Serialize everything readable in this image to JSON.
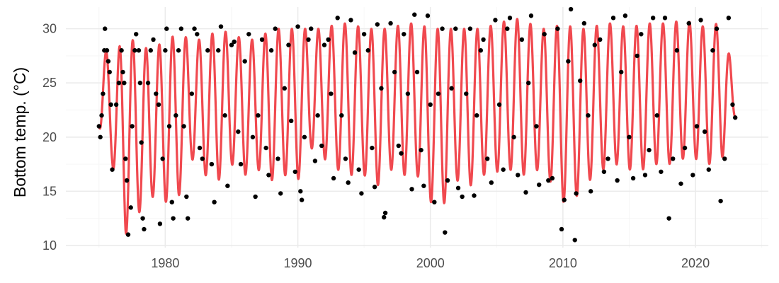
{
  "chart_data": {
    "type": "scatter",
    "title": "",
    "xlabel": "",
    "ylabel": "Bottom temp. (°C)",
    "xlim": [
      1972.5,
      2025.5
    ],
    "ylim": [
      9.8,
      32.0
    ],
    "x_ticks": [
      1980,
      1990,
      2000,
      2010,
      2020
    ],
    "y_ticks": [
      10,
      15,
      20,
      25,
      30
    ],
    "grid": true,
    "legend": "none",
    "colors": {
      "points": "#000000",
      "fit": "#f0494f",
      "grid": "#ebebeb"
    },
    "series": [
      {
        "kind": "points",
        "points": [
          [
            1975.0,
            21.0
          ],
          [
            1975.1,
            20.0
          ],
          [
            1975.2,
            22.0
          ],
          [
            1975.3,
            24.0
          ],
          [
            1975.4,
            28.0
          ],
          [
            1975.45,
            30.0
          ],
          [
            1975.6,
            28.0
          ],
          [
            1975.7,
            27.0
          ],
          [
            1975.8,
            26.0
          ],
          [
            1975.9,
            23.0
          ],
          [
            1976.0,
            17.0
          ],
          [
            1976.3,
            23.0
          ],
          [
            1976.5,
            25.0
          ],
          [
            1976.7,
            28.0
          ],
          [
            1976.8,
            26.0
          ],
          [
            1976.9,
            25.0
          ],
          [
            1977.0,
            18.0
          ],
          [
            1977.1,
            16.0
          ],
          [
            1977.2,
            11.0
          ],
          [
            1977.4,
            13.5
          ],
          [
            1977.5,
            21.0
          ],
          [
            1977.7,
            28.0
          ],
          [
            1977.8,
            29.5
          ],
          [
            1978.0,
            28.0
          ],
          [
            1978.1,
            25.0
          ],
          [
            1978.2,
            19.5
          ],
          [
            1978.3,
            12.5
          ],
          [
            1978.4,
            11.5
          ],
          [
            1978.7,
            25.0
          ],
          [
            1978.9,
            28.0
          ],
          [
            1979.1,
            29.0
          ],
          [
            1979.3,
            24.0
          ],
          [
            1979.5,
            23.0
          ],
          [
            1979.6,
            12.0
          ],
          [
            1979.8,
            18.0
          ],
          [
            1980.0,
            28.0
          ],
          [
            1980.1,
            30.0
          ],
          [
            1980.3,
            21.0
          ],
          [
            1980.5,
            14.0
          ],
          [
            1980.6,
            12.5
          ],
          [
            1980.8,
            22.0
          ],
          [
            1981.0,
            28.0
          ],
          [
            1981.2,
            30.0
          ],
          [
            1981.4,
            21.0
          ],
          [
            1981.6,
            14.5
          ],
          [
            1981.7,
            12.5
          ],
          [
            1982.0,
            24.0
          ],
          [
            1982.2,
            30.0
          ],
          [
            1982.4,
            29.5
          ],
          [
            1982.6,
            19.0
          ],
          [
            1982.8,
            18.0
          ],
          [
            1983.2,
            28.0
          ],
          [
            1983.5,
            17.5
          ],
          [
            1983.7,
            14.0
          ],
          [
            1984.0,
            28.0
          ],
          [
            1984.2,
            30.2
          ],
          [
            1984.5,
            22.0
          ],
          [
            1984.7,
            15.5
          ],
          [
            1985.0,
            28.5
          ],
          [
            1985.2,
            28.8
          ],
          [
            1985.5,
            20.5
          ],
          [
            1985.7,
            17.5
          ],
          [
            1986.0,
            27.0
          ],
          [
            1986.3,
            29.5
          ],
          [
            1986.6,
            20.0
          ],
          [
            1986.8,
            14.5
          ],
          [
            1987.0,
            22.0
          ],
          [
            1987.3,
            29.0
          ],
          [
            1987.6,
            19.0
          ],
          [
            1987.8,
            16.5
          ],
          [
            1988.0,
            28.0
          ],
          [
            1988.3,
            30.0
          ],
          [
            1988.5,
            18.0
          ],
          [
            1988.7,
            14.8
          ],
          [
            1989.0,
            24.5
          ],
          [
            1989.3,
            28.5
          ],
          [
            1989.5,
            21.5
          ],
          [
            1989.8,
            16.8
          ],
          [
            1990.0,
            30.2
          ],
          [
            1990.2,
            15.0
          ],
          [
            1990.3,
            14.2
          ],
          [
            1990.5,
            20.0
          ],
          [
            1990.8,
            29.0
          ],
          [
            1991.0,
            30.0
          ],
          [
            1991.3,
            17.8
          ],
          [
            1991.5,
            22.0
          ],
          [
            1991.8,
            19.2
          ],
          [
            1992.0,
            28.5
          ],
          [
            1992.3,
            29.0
          ],
          [
            1992.5,
            24.0
          ],
          [
            1992.7,
            16.2
          ],
          [
            1993.0,
            31.0
          ],
          [
            1993.3,
            22.0
          ],
          [
            1993.6,
            18.0
          ],
          [
            1993.8,
            15.8
          ],
          [
            1994.0,
            30.8
          ],
          [
            1994.3,
            27.8
          ],
          [
            1994.6,
            17.0
          ],
          [
            1994.8,
            14.8
          ],
          [
            1995.0,
            29.5
          ],
          [
            1995.3,
            28.0
          ],
          [
            1995.6,
            19.0
          ],
          [
            1995.8,
            15.4
          ],
          [
            1996.0,
            30.4
          ],
          [
            1996.3,
            24.5
          ],
          [
            1996.5,
            12.6
          ],
          [
            1996.6,
            13.0
          ],
          [
            1997.0,
            30.5
          ],
          [
            1997.3,
            26.0
          ],
          [
            1997.6,
            19.2
          ],
          [
            1997.8,
            18.5
          ],
          [
            1998.0,
            29.5
          ],
          [
            1998.3,
            24.0
          ],
          [
            1998.6,
            15.2
          ],
          [
            1998.8,
            31.3
          ],
          [
            1999.0,
            26.0
          ],
          [
            1999.3,
            18.8
          ],
          [
            1999.5,
            15.5
          ],
          [
            1999.8,
            31.2
          ],
          [
            2000.0,
            23.0
          ],
          [
            2000.3,
            14.0
          ],
          [
            2000.6,
            24.0
          ],
          [
            2000.9,
            30.0
          ],
          [
            2001.1,
            11.2
          ],
          [
            2001.3,
            16.0
          ],
          [
            2001.6,
            24.5
          ],
          [
            2001.9,
            30.0
          ],
          [
            2002.1,
            15.3
          ],
          [
            2002.4,
            14.5
          ],
          [
            2002.7,
            24.0
          ],
          [
            2003.0,
            30.0
          ],
          [
            2003.3,
            14.6
          ],
          [
            2003.5,
            22.0
          ],
          [
            2003.8,
            28.0
          ],
          [
            2004.0,
            29.0
          ],
          [
            2004.3,
            18.0
          ],
          [
            2004.6,
            15.8
          ],
          [
            2004.9,
            30.8
          ],
          [
            2005.2,
            23.0
          ],
          [
            2005.5,
            17.0
          ],
          [
            2005.8,
            30.0
          ],
          [
            2006.0,
            31.0
          ],
          [
            2006.3,
            20.0
          ],
          [
            2006.6,
            16.5
          ],
          [
            2006.9,
            29.0
          ],
          [
            2007.2,
            14.9
          ],
          [
            2007.4,
            25.0
          ],
          [
            2007.6,
            31.2
          ],
          [
            2008.0,
            21.0
          ],
          [
            2008.2,
            15.6
          ],
          [
            2008.6,
            29.5
          ],
          [
            2008.9,
            16.0
          ],
          [
            2009.2,
            16.2
          ],
          [
            2009.6,
            30.0
          ],
          [
            2009.9,
            11.5
          ],
          [
            2010.1,
            14.2
          ],
          [
            2010.4,
            27.0
          ],
          [
            2010.6,
            31.8
          ],
          [
            2010.9,
            10.5
          ],
          [
            2011.0,
            14.8
          ],
          [
            2011.3,
            25.2
          ],
          [
            2011.6,
            30.5
          ],
          [
            2011.9,
            22.0
          ],
          [
            2012.1,
            15.0
          ],
          [
            2012.4,
            28.5
          ],
          [
            2012.8,
            29.0
          ],
          [
            2013.1,
            16.8
          ],
          [
            2013.4,
            18.0
          ],
          [
            2013.8,
            31.0
          ],
          [
            2014.1,
            16.0
          ],
          [
            2014.4,
            26.0
          ],
          [
            2014.7,
            31.2
          ],
          [
            2015.0,
            20.0
          ],
          [
            2015.3,
            16.2
          ],
          [
            2015.6,
            27.5
          ],
          [
            2015.9,
            29.5
          ],
          [
            2016.2,
            16.5
          ],
          [
            2016.5,
            18.8
          ],
          [
            2016.8,
            31.0
          ],
          [
            2017.1,
            22.0
          ],
          [
            2017.4,
            16.8
          ],
          [
            2017.7,
            31.0
          ],
          [
            2018.0,
            12.5
          ],
          [
            2018.3,
            18.0
          ],
          [
            2018.6,
            28.0
          ],
          [
            2018.9,
            15.7
          ],
          [
            2019.2,
            19.0
          ],
          [
            2019.5,
            30.5
          ],
          [
            2019.8,
            16.5
          ],
          [
            2020.1,
            21.0
          ],
          [
            2020.4,
            30.8
          ],
          [
            2020.7,
            20.5
          ],
          [
            2021.0,
            17.0
          ],
          [
            2021.3,
            28.0
          ],
          [
            2021.6,
            30.0
          ],
          [
            2021.9,
            14.1
          ],
          [
            2022.2,
            18.0
          ],
          [
            2022.5,
            31.0
          ],
          [
            2022.8,
            23.0
          ],
          [
            2023.0,
            21.8
          ]
        ]
      },
      {
        "kind": "fitted-line",
        "x_start": 1975.0,
        "x_end": 2023.0,
        "seasonal_cycle_period_years": 1.0,
        "annual_cycles": [
          [
            1975,
            29.0,
            21.0
          ],
          [
            1976,
            27.0,
            17.5
          ],
          [
            1977,
            29.5,
            11.0
          ],
          [
            1978,
            28.5,
            13.0
          ],
          [
            1979,
            28.0,
            14.5
          ],
          [
            1980,
            29.0,
            14.0
          ],
          [
            1981,
            29.5,
            14.5
          ],
          [
            1982,
            29.0,
            18.0
          ],
          [
            1983,
            29.0,
            16.5
          ],
          [
            1984,
            30.0,
            16.0
          ],
          [
            1985,
            29.5,
            17.5
          ],
          [
            1986,
            29.0,
            16.5
          ],
          [
            1987,
            29.0,
            17.0
          ],
          [
            1988,
            30.0,
            16.0
          ],
          [
            1989,
            30.0,
            16.5
          ],
          [
            1990,
            30.0,
            16.0
          ],
          [
            1991,
            30.0,
            19.0
          ],
          [
            1992,
            30.0,
            18.0
          ],
          [
            1993,
            30.5,
            17.0
          ],
          [
            1994,
            30.5,
            16.5
          ],
          [
            1995,
            30.0,
            16.5
          ],
          [
            1996,
            30.0,
            15.5
          ],
          [
            1997,
            30.0,
            17.0
          ],
          [
            1998,
            30.5,
            16.5
          ],
          [
            1999,
            30.5,
            16.5
          ],
          [
            2000,
            30.0,
            14.0
          ],
          [
            2001,
            30.0,
            13.8
          ],
          [
            2002,
            30.0,
            16.0
          ],
          [
            2003,
            30.0,
            15.5
          ],
          [
            2004,
            30.0,
            16.5
          ],
          [
            2005,
            30.5,
            16.8
          ],
          [
            2006,
            30.8,
            17.0
          ],
          [
            2007,
            31.0,
            16.5
          ],
          [
            2008,
            30.0,
            17.0
          ],
          [
            2009,
            30.0,
            16.0
          ],
          [
            2010,
            30.5,
            14.0
          ],
          [
            2011,
            30.0,
            14.5
          ],
          [
            2012,
            30.0,
            16.0
          ],
          [
            2013,
            30.5,
            17.0
          ],
          [
            2014,
            30.5,
            17.5
          ],
          [
            2015,
            30.0,
            17.0
          ],
          [
            2016,
            30.5,
            17.0
          ],
          [
            2017,
            30.5,
            17.5
          ],
          [
            2018,
            30.5,
            17.5
          ],
          [
            2019,
            30.8,
            18.0
          ],
          [
            2020,
            30.5,
            18.0
          ],
          [
            2021,
            30.0,
            17.5
          ],
          [
            2022,
            30.8,
            18.0
          ],
          [
            2023,
            25.0,
            21.8
          ]
        ]
      }
    ]
  }
}
